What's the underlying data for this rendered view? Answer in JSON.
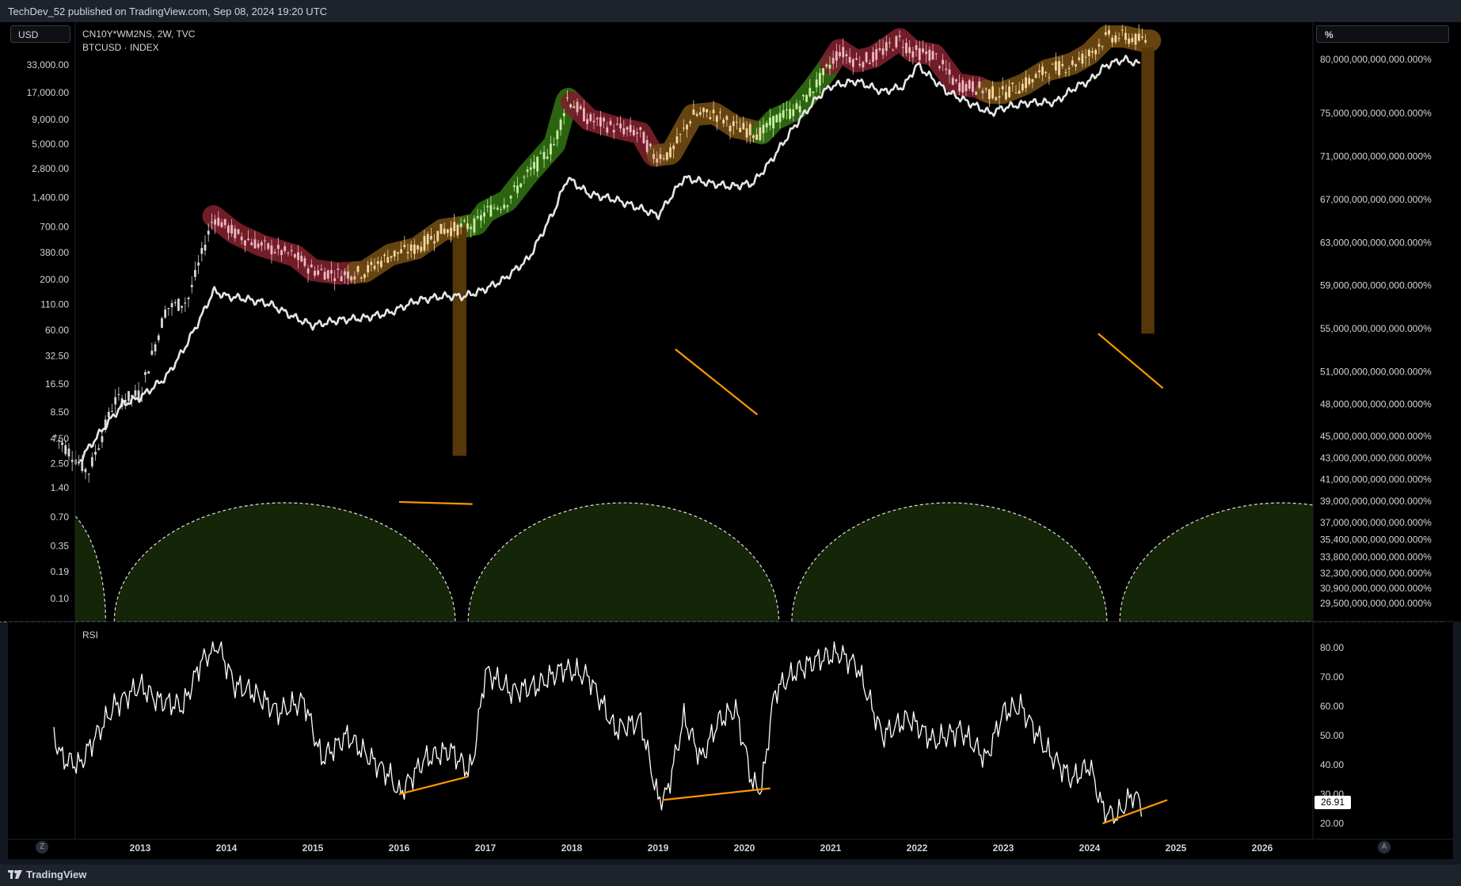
{
  "header": {
    "published": "TechDev_52 published on TradingView.com, Sep 08, 2024 19:20 UTC"
  },
  "controls": {
    "currency": "USD",
    "right_scale": "%",
    "left_button": "Z",
    "right_button": "A"
  },
  "legend": {
    "line1": "CN10Y*WM2NS, 2W, TVC",
    "line2": "BTCUSD · INDEX"
  },
  "footer": {
    "brand": "TradingView"
  },
  "chart_data": [
    {
      "type": "line",
      "title": "",
      "series": [
        {
          "name": "CN10Y*WM2NS, 2W, TVC",
          "color": "#e6e6e6",
          "x": [
            2012.3,
            2012.55,
            2012.8,
            2013.0,
            2013.3,
            2013.5,
            2013.7,
            2013.85,
            2014.0,
            2014.2,
            2014.5,
            2014.8,
            2015.0,
            2015.3,
            2015.6,
            2015.9,
            2016.2,
            2016.5,
            2016.75,
            2016.95,
            2017.2,
            2017.5,
            2017.8,
            2017.95,
            2018.2,
            2018.5,
            2018.85,
            2019.0,
            2019.3,
            2019.6,
            2019.85,
            2020.1,
            2020.3,
            2020.6,
            2020.85,
            2021.0,
            2021.3,
            2021.6,
            2021.85,
            2022.0,
            2022.35,
            2022.6,
            2022.85,
            2023.0,
            2023.3,
            2023.6,
            2023.85,
            2024.0,
            2024.2,
            2024.4,
            2024.6
          ],
          "y": [
            42.8,
            45.5,
            48.0,
            48.6,
            50.5,
            53.0,
            56.0,
            58.5,
            58.0,
            57.8,
            57.3,
            56.0,
            55.3,
            55.8,
            56.0,
            56.5,
            57.6,
            58.0,
            58.0,
            58.5,
            59.5,
            61.5,
            66.0,
            69.0,
            67.5,
            67.0,
            66.0,
            65.5,
            69.0,
            68.5,
            68.2,
            68.5,
            70.5,
            74.0,
            76.5,
            77.5,
            78.0,
            77.0,
            77.5,
            79.5,
            77.0,
            76.0,
            75.0,
            75.5,
            76.0,
            76.0,
            77.5,
            78.0,
            79.5,
            80.0,
            79.5
          ]
        },
        {
          "name": "BTCUSD · INDEX",
          "color": "#ffffff",
          "x": [
            2012.0,
            2012.4,
            2012.7,
            2013.0,
            2013.3,
            2013.55,
            2013.85,
            2014.1,
            2014.4,
            2014.8,
            2015.0,
            2015.3,
            2015.6,
            2015.9,
            2016.2,
            2016.5,
            2016.75,
            2016.9,
            2017.0,
            2017.25,
            2017.5,
            2017.8,
            2017.95,
            2018.2,
            2018.5,
            2018.8,
            2018.95,
            2019.15,
            2019.4,
            2019.65,
            2019.9,
            2020.0,
            2020.2,
            2020.35,
            2020.6,
            2020.8,
            2020.95,
            2021.1,
            2021.3,
            2021.5,
            2021.8,
            2021.95,
            2022.2,
            2022.45,
            2022.7,
            2022.85,
            2023.0,
            2023.25,
            2023.5,
            2023.8,
            2024.0,
            2024.2,
            2024.4,
            2024.6
          ],
          "y": [
            5.0,
            2.0,
            11.0,
            13.0,
            100.0,
            120.0,
            900.0,
            600.0,
            450.0,
            350.0,
            250.0,
            230.0,
            240.0,
            360.0,
            420.0,
            650.0,
            700.0,
            750.0,
            1000.0,
            1300.0,
            2500.0,
            5000.0,
            15000.0,
            9000.0,
            7500.0,
            6500.0,
            3800.0,
            4000.0,
            10000.0,
            10500.0,
            7500.0,
            7200.0,
            6500.0,
            9000.0,
            11500.0,
            19000.0,
            29000.0,
            47000.0,
            36000.0,
            40000.0,
            61000.0,
            46000.0,
            42000.0,
            21000.0,
            19500.0,
            17000.0,
            17000.0,
            21000.0,
            29000.0,
            34000.0,
            43000.0,
            65000.0,
            65000.0,
            59000.0
          ]
        }
      ],
      "left_axis": {
        "ticks": [
          "33,000.00",
          "17,000.00",
          "9,000.00",
          "5,000.00",
          "2,800.00",
          "1,400.00",
          "700.00",
          "380.00",
          "200.00",
          "110.00",
          "60.00",
          "32.50",
          "16.50",
          "8.50",
          "4.50",
          "2.50",
          "1.40",
          "0.70",
          "0.35",
          "0.19",
          "0.10"
        ],
        "scale": "log"
      },
      "right_axis": {
        "ticks": [
          "80,000,000,000,000.000%",
          "75,000,000,000,000.000%",
          "71,000,000,000,000.000%",
          "67,000,000,000,000.000%",
          "63,000,000,000,000.000%",
          "59,000,000,000,000.000%",
          "55,000,000,000,000.000%",
          "51,000,000,000,000.000%",
          "48,000,000,000,000.000%",
          "45,000,000,000,000.000%",
          "43,000,000,000,000.000%",
          "41,000,000,000,000.000%",
          "39,000,000,000,000.000%",
          "37,000,000,000,000.000%",
          "35,400,000,000,000.000%",
          "33,800,000,000,000.000%",
          "32,300,000,000,000.000%",
          "30,900,000,000,000.000%",
          "29,500,000,000,000.000%"
        ]
      },
      "cycle_phases": [
        {
          "from": 2013.85,
          "to": 2015.5,
          "color": "#7a1f2b"
        },
        {
          "from": 2015.5,
          "to": 2016.8,
          "color": "#6e4a14"
        },
        {
          "from": 2016.8,
          "to": 2018.0,
          "color": "#2f6b12"
        },
        {
          "from": 2018.0,
          "to": 2019.0,
          "color": "#7a1f2b"
        },
        {
          "from": 2019.0,
          "to": 2020.2,
          "color": "#6e4a14"
        },
        {
          "from": 2020.2,
          "to": 2021.0,
          "color": "#2f6b12"
        },
        {
          "from": 2021.0,
          "to": 2022.8,
          "color": "#7a1f2b"
        },
        {
          "from": 2022.8,
          "to": 2024.7,
          "color": "#6e4a14"
        }
      ],
      "cycle_arcs": [
        [
          2011.3,
          2012.6
        ],
        [
          2012.7,
          2016.65
        ],
        [
          2016.8,
          2020.4
        ],
        [
          2020.55,
          2024.2
        ],
        [
          2024.35,
          2028.1
        ]
      ],
      "trendlines": [
        [
          [
            2016.0,
            1.0
          ],
          [
            2016.85,
            0.95
          ]
        ],
        [
          [
            2019.2,
            38.0
          ],
          [
            2020.15,
            8.0
          ]
        ],
        [
          [
            2024.1,
            55.0
          ],
          [
            2024.85,
            15.0
          ]
        ]
      ]
    },
    {
      "type": "line",
      "title": "RSI",
      "x_ticks": [
        "2013",
        "2014",
        "2015",
        "2016",
        "2017",
        "2018",
        "2019",
        "2020",
        "2021",
        "2022",
        "2023",
        "2024",
        "2025",
        "2026"
      ],
      "y_ticks": [
        "80.00",
        "70.00",
        "60.00",
        "50.00",
        "40.00",
        "30.00",
        "20.00"
      ],
      "ylim": [
        20,
        80
      ],
      "last_value": "26.91",
      "series": [
        {
          "name": "RSI",
          "color": "#ffffff",
          "x": [
            2012.0,
            2012.1,
            2012.3,
            2012.45,
            2012.7,
            2013.0,
            2013.2,
            2013.5,
            2013.7,
            2013.9,
            2014.1,
            2014.3,
            2014.6,
            2014.9,
            2015.1,
            2015.4,
            2015.6,
            2015.9,
            2016.0,
            2016.3,
            2016.6,
            2016.8,
            2016.85,
            2017.0,
            2017.3,
            2017.6,
            2017.9,
            2018.2,
            2018.5,
            2018.8,
            2019.0,
            2019.1,
            2019.3,
            2019.5,
            2019.7,
            2019.9,
            2020.1,
            2020.2,
            2020.35,
            2020.6,
            2020.85,
            2021.1,
            2021.3,
            2021.6,
            2021.9,
            2022.2,
            2022.5,
            2022.8,
            2023.0,
            2023.2,
            2023.5,
            2023.8,
            2024.0,
            2024.15,
            2024.3,
            2024.5,
            2024.6
          ],
          "y": [
            50.0,
            42.0,
            40.0,
            48.0,
            60.0,
            67.0,
            62.0,
            60.0,
            75.0,
            81.0,
            67.0,
            65.0,
            58.0,
            62.0,
            42.0,
            50.0,
            44.0,
            36.0,
            30.0,
            42.0,
            45.0,
            38.0,
            40.0,
            72.0,
            65.0,
            67.0,
            73.0,
            70.0,
            52.0,
            55.0,
            28.0,
            30.0,
            56.0,
            42.0,
            55.0,
            59.0,
            33.0,
            32.0,
            65.0,
            72.0,
            76.0,
            78.0,
            74.0,
            50.0,
            56.0,
            48.0,
            52.0,
            42.0,
            58.0,
            60.0,
            45.0,
            35.0,
            40.0,
            25.0,
            22.0,
            30.0,
            27.0
          ]
        }
      ],
      "trendlines": [
        [
          [
            2016.0,
            30.0
          ],
          [
            2016.8,
            36.0
          ]
        ],
        [
          [
            2019.05,
            28.0
          ],
          [
            2020.3,
            32.0
          ]
        ],
        [
          [
            2024.15,
            20.0
          ],
          [
            2024.9,
            28.0
          ]
        ]
      ]
    }
  ]
}
